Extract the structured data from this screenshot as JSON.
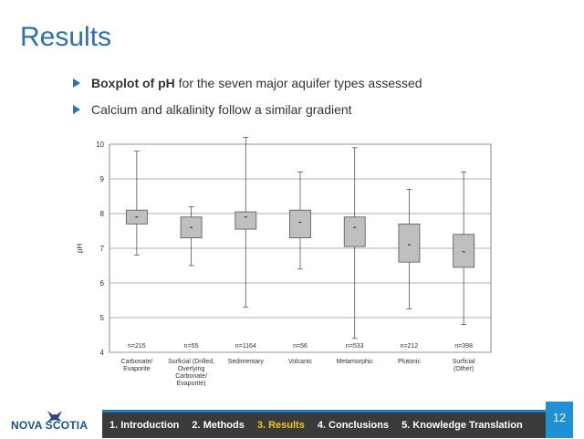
{
  "slide": {
    "title": "Results",
    "bullets": [
      {
        "bold": "Boxplot of pH",
        "rest": " for the seven major aquifer types assessed"
      },
      {
        "bold": "",
        "rest": "Calcium and alkalinity follow a similar gradient"
      }
    ],
    "page_number": "12"
  },
  "footer": {
    "logo_text": "NOVA SCOTIA",
    "nav": [
      {
        "label": "1. Introduction",
        "active": false
      },
      {
        "label": "2. Methods",
        "active": false
      },
      {
        "label": "3. Results",
        "active": true
      },
      {
        "label": "4. Conclusions",
        "active": false
      },
      {
        "label": "5. Knowledge Translation",
        "active": false
      }
    ]
  },
  "colors": {
    "accent": "#2e6fae",
    "active_nav": "#f5c518",
    "box_fill": "#bfbfbf",
    "footer_bg": "#3a3a3a"
  },
  "chart_data": {
    "type": "boxplot",
    "ylabel": "pH",
    "ylim": [
      4,
      10
    ],
    "yticks": [
      4,
      5,
      6,
      7,
      8,
      9,
      10
    ],
    "grid": true,
    "categories": [
      {
        "label": [
          "Carbonate/",
          "Evaporite"
        ],
        "n": "n=215",
        "min": 6.8,
        "q1": 7.7,
        "median": 7.9,
        "q3": 8.1,
        "max": 9.8
      },
      {
        "label": [
          "Surficial (Drilled,",
          "Overlying",
          "Carbonate/",
          "Evaporite)"
        ],
        "n": "n=55",
        "min": 6.5,
        "q1": 7.3,
        "median": 7.6,
        "q3": 7.9,
        "max": 8.2
      },
      {
        "label": [
          "Sedimentary"
        ],
        "n": "n=1164",
        "min": 5.3,
        "q1": 7.55,
        "median": 7.9,
        "q3": 8.05,
        "max": 10.2
      },
      {
        "label": [
          "Volcanic"
        ],
        "n": "n=56",
        "min": 6.4,
        "q1": 7.3,
        "median": 7.75,
        "q3": 8.1,
        "max": 9.2
      },
      {
        "label": [
          "Metamorphic"
        ],
        "n": "n=533",
        "min": 4.4,
        "q1": 7.05,
        "median": 7.6,
        "q3": 7.9,
        "max": 9.9
      },
      {
        "label": [
          "Plutonic"
        ],
        "n": "n=212",
        "min": 5.25,
        "q1": 6.6,
        "median": 7.1,
        "q3": 7.7,
        "max": 8.7
      },
      {
        "label": [
          "Surficial",
          "(Other)"
        ],
        "n": "n=398",
        "min": 4.8,
        "q1": 6.45,
        "median": 6.9,
        "q3": 7.4,
        "max": 9.2
      }
    ]
  }
}
